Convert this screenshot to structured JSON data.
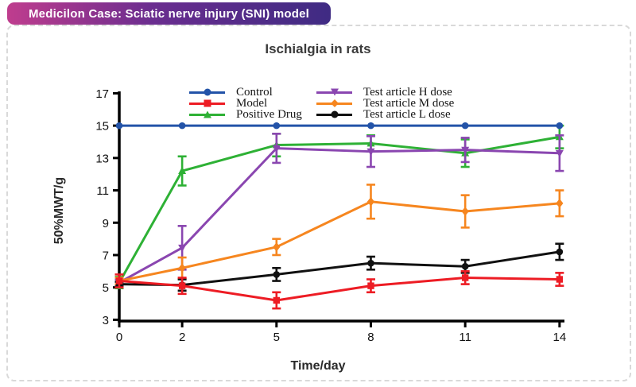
{
  "badge": {
    "text": "Medicilon Case: Sciatic nerve injury (SNI) model",
    "gradient_left": "#bf3d8e",
    "gradient_right": "#3f2b83"
  },
  "chart_data": {
    "type": "line",
    "title": "Ischialgia in rats",
    "xlabel": "Time/day",
    "ylabel": "50%MWT/g",
    "x": [
      0,
      2,
      5,
      8,
      11,
      14
    ],
    "xlim": [
      0,
      14
    ],
    "ylim": [
      3,
      17
    ],
    "y_ticks": [
      3,
      5,
      7,
      9,
      11,
      13,
      15,
      17
    ],
    "grid": false,
    "legend_position": "top-inside-two-columns",
    "error_bars": true,
    "series": [
      {
        "name": "Control",
        "color": "#2353a8",
        "marker": "circle",
        "values": [
          15,
          15,
          15,
          15,
          15,
          15
        ],
        "errors": [
          0,
          0,
          0,
          0,
          0,
          0
        ]
      },
      {
        "name": "Model",
        "color": "#ed1c24",
        "marker": "square",
        "values": [
          5.4,
          5.1,
          4.2,
          5.1,
          5.6,
          5.5
        ],
        "errors": [
          0.4,
          0.5,
          0.5,
          0.4,
          0.4,
          0.4
        ]
      },
      {
        "name": "Positive Drug",
        "color": "#2eb135",
        "marker": "triangle-up",
        "values": [
          5.3,
          12.2,
          13.8,
          13.9,
          13.3,
          14.3
        ],
        "errors": [
          0.35,
          0.9,
          0.7,
          0.5,
          0.85,
          0.7
        ]
      },
      {
        "name": "Test article H dose",
        "color": "#8a46b0",
        "marker": "triangle-down",
        "values": [
          5.3,
          7.45,
          13.6,
          13.4,
          13.5,
          13.3
        ],
        "errors": [
          0.2,
          1.35,
          0.9,
          0.95,
          0.75,
          1.1
        ]
      },
      {
        "name": "Test article M dose",
        "color": "#f6861f",
        "marker": "diamond",
        "values": [
          5.4,
          6.2,
          7.5,
          10.3,
          9.7,
          10.2
        ],
        "errors": [
          0.2,
          0.65,
          0.5,
          1.05,
          1.0,
          0.8
        ]
      },
      {
        "name": "Test article L dose",
        "color": "#111111",
        "marker": "circle",
        "values": [
          5.2,
          5.15,
          5.8,
          6.5,
          6.3,
          7.2
        ],
        "errors": [
          0.15,
          0.35,
          0.4,
          0.4,
          0.4,
          0.5
        ]
      }
    ]
  }
}
